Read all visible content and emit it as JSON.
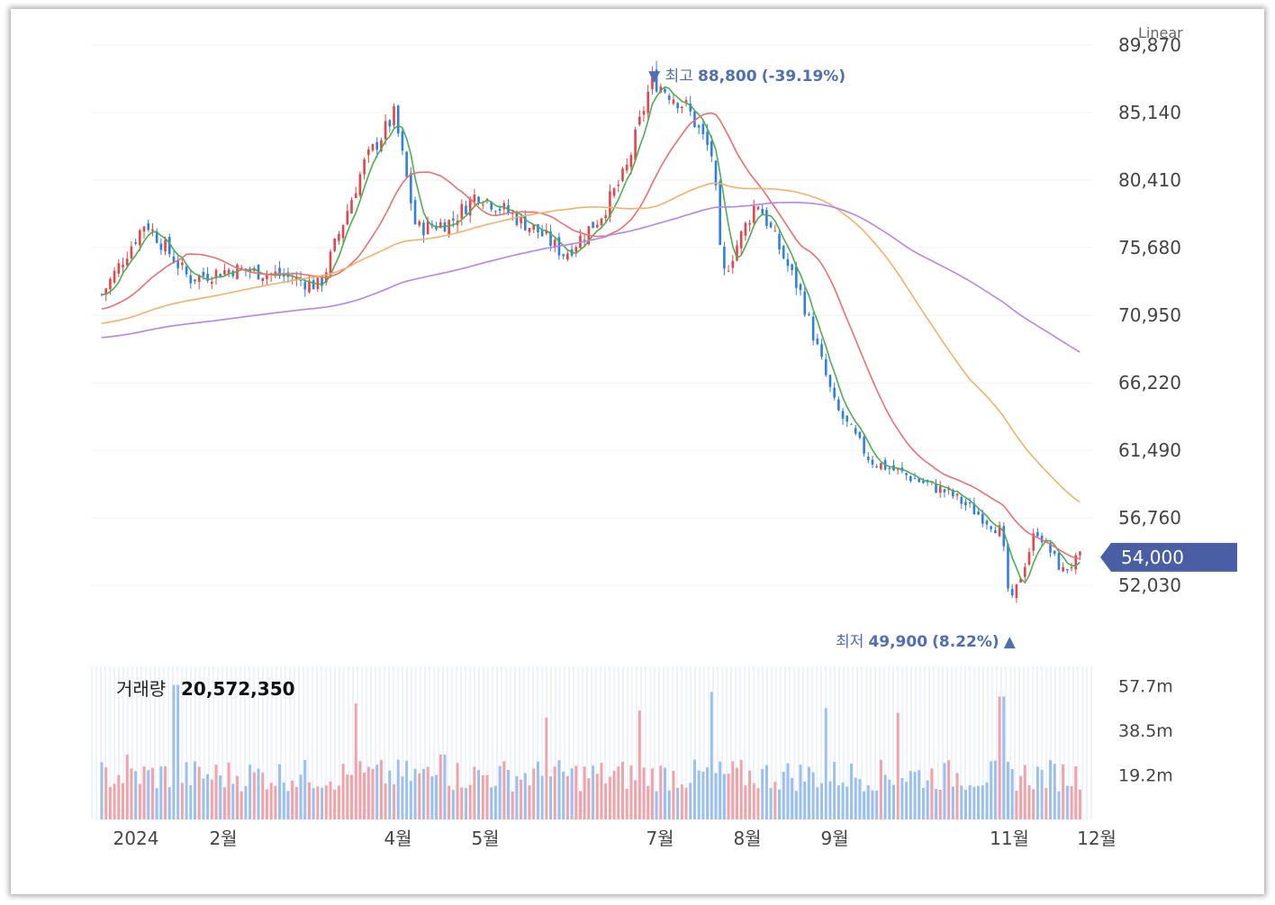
{
  "chart_data": {
    "type": "candlestick",
    "scale_label": "Linear",
    "price_axis": {
      "ticks": [
        "89,870",
        "85,140",
        "80,410",
        "75,680",
        "70,950",
        "66,220",
        "61,490",
        "56,760",
        "52,030"
      ],
      "tick_values": [
        89870,
        85140,
        80410,
        75680,
        70950,
        66220,
        61490,
        56760,
        52030
      ],
      "range": [
        47500,
        90500
      ]
    },
    "current_price": {
      "value": 54000,
      "label": "54,000",
      "color": "#4a5ea6"
    },
    "high_annotation": {
      "prefix": "▼ 최고",
      "value": "88,800",
      "pct": "(-39.19%)",
      "price": 88800,
      "month_index": 6.3
    },
    "low_annotation": {
      "prefix": "최저",
      "value": "49,900",
      "pct": "(8.22%)",
      "suffix": "▲",
      "price": 49900,
      "month_index": 10.4
    },
    "x_axis": {
      "labels": [
        "2024",
        "2월",
        "4월",
        "5월",
        "7월",
        "8월",
        "9월",
        "11월",
        "12월"
      ],
      "label_month_index": [
        0,
        1,
        3,
        4,
        6,
        7,
        8,
        10,
        11
      ]
    },
    "monthly_close": [
      {
        "month_index": 0.0,
        "close": 72400
      },
      {
        "month_index": 0.5,
        "close": 77500
      },
      {
        "month_index": 1.0,
        "close": 73500
      },
      {
        "month_index": 1.5,
        "close": 74200
      },
      {
        "month_index": 2.0,
        "close": 73800
      },
      {
        "month_index": 2.5,
        "close": 73000
      },
      {
        "month_index": 3.0,
        "close": 81500
      },
      {
        "month_index": 3.35,
        "close": 85000
      },
      {
        "month_index": 3.6,
        "close": 77000
      },
      {
        "month_index": 4.0,
        "close": 77500
      },
      {
        "month_index": 4.3,
        "close": 79500
      },
      {
        "month_index": 5.0,
        "close": 76800
      },
      {
        "month_index": 5.3,
        "close": 75200
      },
      {
        "month_index": 5.7,
        "close": 77800
      },
      {
        "month_index": 6.0,
        "close": 81000
      },
      {
        "month_index": 6.3,
        "close": 87500
      },
      {
        "month_index": 6.7,
        "close": 85500
      },
      {
        "month_index": 7.0,
        "close": 82000
      },
      {
        "month_index": 7.1,
        "close": 73500
      },
      {
        "month_index": 7.5,
        "close": 79000
      },
      {
        "month_index": 8.0,
        "close": 72500
      },
      {
        "month_index": 8.4,
        "close": 64500
      },
      {
        "month_index": 8.8,
        "close": 60800
      },
      {
        "month_index": 9.3,
        "close": 59500
      },
      {
        "month_index": 9.7,
        "close": 58500
      },
      {
        "month_index": 10.0,
        "close": 57200
      },
      {
        "month_index": 10.3,
        "close": 55800
      },
      {
        "month_index": 10.4,
        "close": 50500
      },
      {
        "month_index": 10.7,
        "close": 56000
      },
      {
        "month_index": 11.0,
        "close": 53000
      },
      {
        "month_index": 11.2,
        "close": 54000
      }
    ],
    "moving_averages": [
      {
        "color": "#4caf50"
      },
      {
        "color": "#ef6f6f"
      },
      {
        "color": "#f5b06a"
      },
      {
        "color": "#b982f0"
      }
    ],
    "volume": {
      "label": "거래량",
      "value": "20,572,350",
      "ticks": [
        "57.7m",
        "38.5m",
        "19.2m"
      ],
      "tick_values": [
        57.7,
        38.5,
        19.2
      ],
      "range_max": 66,
      "spikes": [
        {
          "month_index": 0.3,
          "value": 28
        },
        {
          "month_index": 0.85,
          "value": 58
        },
        {
          "month_index": 2.9,
          "value": 50
        },
        {
          "month_index": 3.9,
          "value": 28
        },
        {
          "month_index": 5.1,
          "value": 44
        },
        {
          "month_index": 6.15,
          "value": 47
        },
        {
          "month_index": 7.0,
          "value": 55
        },
        {
          "month_index": 8.3,
          "value": 48
        },
        {
          "month_index": 9.1,
          "value": 46
        },
        {
          "month_index": 10.3,
          "value": 53
        }
      ]
    },
    "colors": {
      "up": "#e8434b",
      "down": "#2f7ee6",
      "up_volume": "#f0a3a8",
      "down_volume": "#9cc0ee"
    }
  }
}
